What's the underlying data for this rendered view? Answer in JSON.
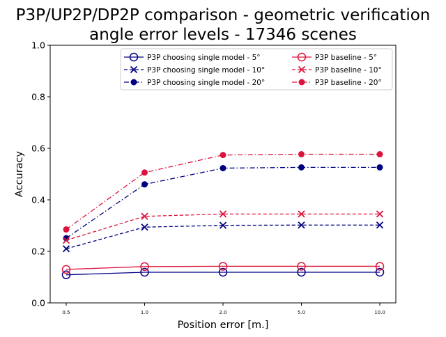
{
  "chart_data": {
    "type": "line",
    "title_line1": "P3P/UP2P/DP2P comparison - geometric verification",
    "title_line2": "angle error levels - 17346 scenes",
    "xlabel": "Position error [m.]",
    "ylabel": "Accuracy",
    "categories": [
      "0.5",
      "1.0",
      "2.0",
      "5.0",
      "10.0"
    ],
    "ylim": [
      0.0,
      1.0
    ],
    "yticks": [
      "0.0",
      "0.2",
      "0.4",
      "0.6",
      "0.8",
      "1.0"
    ],
    "grid": false,
    "legend_position": "top-right",
    "series": [
      {
        "name": "P3P choosing single model - 5°",
        "color": "#000080",
        "marker": "circle-open",
        "linestyle": "solid",
        "values": [
          0.109,
          0.119,
          0.119,
          0.119,
          0.119
        ]
      },
      {
        "name": "P3P choosing single model - 10°",
        "color": "#000080",
        "marker": "x",
        "linestyle": "dashed",
        "values": [
          0.21,
          0.294,
          0.301,
          0.302,
          0.302
        ]
      },
      {
        "name": "P3P choosing single model - 20°",
        "color": "#000080",
        "marker": "dot",
        "linestyle": "dashdot",
        "values": [
          0.251,
          0.46,
          0.523,
          0.526,
          0.526
        ]
      },
      {
        "name": "P3P baseline - 5°",
        "color": "#dc143c",
        "marker": "circle-open",
        "linestyle": "solid",
        "values": [
          0.13,
          0.141,
          0.142,
          0.142,
          0.142
        ]
      },
      {
        "name": "P3P baseline - 10°",
        "color": "#dc143c",
        "marker": "x",
        "linestyle": "dashed",
        "values": [
          0.243,
          0.336,
          0.345,
          0.345,
          0.345
        ]
      },
      {
        "name": "P3P baseline - 20°",
        "color": "#dc143c",
        "marker": "dot",
        "linestyle": "dashdot",
        "values": [
          0.285,
          0.506,
          0.574,
          0.577,
          0.577
        ]
      }
    ]
  }
}
